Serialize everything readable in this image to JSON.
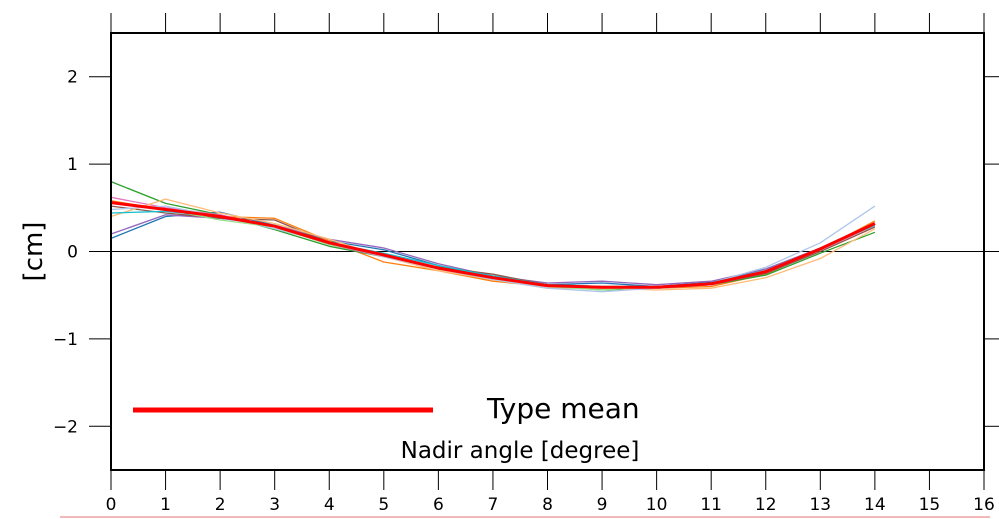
{
  "chart_data": {
    "type": "line",
    "xlabel": "Nadir angle [degree]",
    "ylabel": "[cm]",
    "xlim": [
      0,
      16
    ],
    "ylim": [
      -2.5,
      2.5
    ],
    "x_ticks": [
      0,
      1,
      2,
      3,
      4,
      5,
      6,
      7,
      8,
      9,
      10,
      11,
      12,
      13,
      14,
      15,
      16
    ],
    "y_ticks": [
      -2,
      -1,
      0,
      1,
      2
    ],
    "zero_line": true,
    "grid": false,
    "legend": {
      "position": "bottom-left",
      "entries": [
        {
          "label": "Type mean",
          "color": "#ff0000"
        }
      ]
    },
    "x": [
      0,
      1,
      2,
      3,
      4,
      5,
      6,
      7,
      8,
      9,
      10,
      11,
      12,
      13,
      14
    ],
    "series": [
      {
        "color": "#1f77b4",
        "values": [
          0.15,
          0.4,
          0.45,
          0.3,
          0.12,
          0.02,
          -0.16,
          -0.3,
          -0.38,
          -0.36,
          -0.4,
          -0.35,
          -0.2,
          0.03,
          0.3
        ]
      },
      {
        "color": "#ff7f0e",
        "values": [
          0.58,
          0.48,
          0.4,
          0.38,
          0.12,
          -0.12,
          -0.22,
          -0.34,
          -0.4,
          -0.42,
          -0.42,
          -0.4,
          -0.26,
          0.02,
          0.35
        ]
      },
      {
        "color": "#2ca02c",
        "values": [
          0.8,
          0.55,
          0.42,
          0.25,
          0.06,
          -0.06,
          -0.18,
          -0.28,
          -0.38,
          -0.44,
          -0.42,
          -0.38,
          -0.27,
          -0.02,
          0.22
        ]
      },
      {
        "color": "#9467bd",
        "values": [
          0.2,
          0.42,
          0.38,
          0.3,
          0.14,
          0.04,
          -0.14,
          -0.28,
          -0.36,
          -0.34,
          -0.38,
          -0.34,
          -0.2,
          0.04,
          0.32
        ]
      },
      {
        "color": "#8c564b",
        "values": [
          0.52,
          0.44,
          0.38,
          0.36,
          0.1,
          -0.04,
          -0.18,
          -0.26,
          -0.38,
          -0.4,
          -0.4,
          -0.38,
          -0.25,
          0.0,
          0.28
        ]
      },
      {
        "color": "#e377c2",
        "values": [
          0.62,
          0.5,
          0.42,
          0.28,
          0.08,
          -0.06,
          -0.2,
          -0.3,
          -0.4,
          -0.42,
          -0.42,
          -0.38,
          -0.24,
          0.02,
          0.3
        ]
      },
      {
        "color": "#ffbb78",
        "values": [
          0.4,
          0.6,
          0.44,
          0.32,
          0.14,
          -0.06,
          -0.22,
          -0.32,
          -0.42,
          -0.42,
          -0.44,
          -0.42,
          -0.3,
          -0.08,
          0.26
        ]
      },
      {
        "color": "#aec7e8",
        "values": [
          0.48,
          0.52,
          0.4,
          0.26,
          0.1,
          -0.06,
          -0.2,
          -0.32,
          -0.42,
          -0.46,
          -0.42,
          -0.36,
          -0.18,
          0.1,
          0.52
        ]
      },
      {
        "color": "#98df8a",
        "values": [
          0.56,
          0.48,
          0.36,
          0.28,
          0.08,
          -0.04,
          -0.2,
          -0.3,
          -0.4,
          -0.44,
          -0.4,
          -0.36,
          -0.22,
          0.04,
          0.3
        ]
      },
      {
        "color": "#17becf",
        "values": [
          0.44,
          0.46,
          0.4,
          0.3,
          0.1,
          -0.02,
          -0.16,
          -0.28,
          -0.38,
          -0.4,
          -0.4,
          -0.36,
          -0.22,
          0.04,
          0.3
        ]
      },
      {
        "color": "#ff0000",
        "mean": true,
        "values": [
          0.56,
          0.48,
          0.4,
          0.29,
          0.1,
          -0.04,
          -0.19,
          -0.3,
          -0.39,
          -0.41,
          -0.41,
          -0.37,
          -0.23,
          0.03,
          0.32
        ]
      }
    ]
  }
}
